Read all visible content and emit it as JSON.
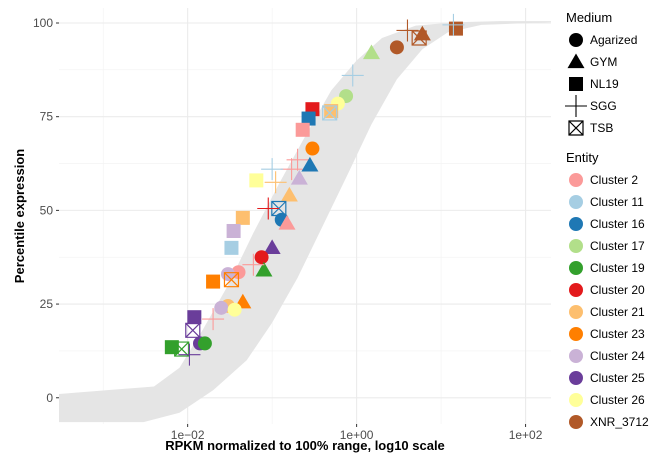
{
  "chart_data": {
    "type": "scatter",
    "title": "",
    "xlabel": "RPKM normalized to 100% range, log10 scale",
    "ylabel": "Percentile expression",
    "x_scale": "log10",
    "xlim": [
      0.0003,
      200
    ],
    "ylim": [
      -7,
      104
    ],
    "x_ticks": [
      0.01,
      1,
      100
    ],
    "x_tick_labels": [
      "1e−02",
      "1e+00",
      "1e+02"
    ],
    "y_ticks": [
      0,
      25,
      50,
      75,
      100
    ],
    "y_tick_labels": [
      "0",
      "25",
      "50",
      "75",
      "100"
    ],
    "grid": true,
    "legend_position": "right",
    "band": {
      "color": "#e5e5e5",
      "upper": [
        [
          0.0003,
          1.0
        ],
        [
          0.004,
          3
        ],
        [
          0.008,
          8
        ],
        [
          0.015,
          18
        ],
        [
          0.03,
          30
        ],
        [
          0.06,
          44
        ],
        [
          0.12,
          57
        ],
        [
          0.25,
          70
        ],
        [
          0.5,
          82
        ],
        [
          1,
          90
        ],
        [
          2,
          96
        ],
        [
          5,
          99.3
        ],
        [
          15,
          100.2
        ],
        [
          50,
          100.5
        ],
        [
          200,
          100.5
        ]
      ],
      "lower": [
        [
          0.0003,
          -6.5
        ],
        [
          0.003,
          -6.5
        ],
        [
          0.008,
          -4
        ],
        [
          0.02,
          2
        ],
        [
          0.05,
          10
        ],
        [
          0.1,
          20
        ],
        [
          0.2,
          32
        ],
        [
          0.4,
          46
        ],
        [
          0.8,
          60
        ],
        [
          1.5,
          73
        ],
        [
          3,
          85
        ],
        [
          6,
          93
        ],
        [
          12,
          97.5
        ],
        [
          30,
          99.5
        ],
        [
          200,
          100.2
        ]
      ]
    },
    "legends": {
      "medium": {
        "title": "Medium",
        "items": [
          {
            "label": "Agarized",
            "shape": "circle"
          },
          {
            "label": "GYM",
            "shape": "triangle"
          },
          {
            "label": "NL19",
            "shape": "square"
          },
          {
            "label": "SGG",
            "shape": "plus"
          },
          {
            "label": "TSB",
            "shape": "boxx"
          }
        ]
      },
      "entity": {
        "title": "Entity",
        "items": [
          {
            "label": "Cluster 2",
            "color": "#fb9a99"
          },
          {
            "label": "Cluster 11",
            "color": "#a6cee3"
          },
          {
            "label": "Cluster 16",
            "color": "#1f78b4"
          },
          {
            "label": "Cluster 17",
            "color": "#b2df8a"
          },
          {
            "label": "Cluster 19",
            "color": "#33a02c"
          },
          {
            "label": "Cluster 20",
            "color": "#e31a1c"
          },
          {
            "label": "Cluster 21",
            "color": "#fdbf6f"
          },
          {
            "label": "Cluster 23",
            "color": "#ff7f00"
          },
          {
            "label": "Cluster 24",
            "color": "#cab2d6"
          },
          {
            "label": "Cluster 25",
            "color": "#6a3d9a"
          },
          {
            "label": "Cluster 26",
            "color": "#ffff99"
          },
          {
            "label": "XNR_3712",
            "color": "#b15928"
          }
        ]
      }
    },
    "points": [
      {
        "x": 15,
        "y": 98.5,
        "entity": "XNR_3712",
        "medium": "square"
      },
      {
        "x": 6,
        "y": 97,
        "entity": "XNR_3712",
        "medium": "triangle"
      },
      {
        "x": 5.5,
        "y": 96,
        "entity": "XNR_3712",
        "medium": "boxx"
      },
      {
        "x": 4,
        "y": 98,
        "entity": "XNR_3712",
        "medium": "plus"
      },
      {
        "x": 3,
        "y": 93.5,
        "entity": "XNR_3712",
        "medium": "circle"
      },
      {
        "x": 14,
        "y": 99.5,
        "entity": "Cluster 11",
        "medium": "plus"
      },
      {
        "x": 1.5,
        "y": 92,
        "entity": "Cluster 17",
        "medium": "triangle"
      },
      {
        "x": 0.9,
        "y": 86,
        "entity": "Cluster 11",
        "medium": "plus"
      },
      {
        "x": 0.75,
        "y": 80.5,
        "entity": "Cluster 17",
        "medium": "circle"
      },
      {
        "x": 0.6,
        "y": 78.5,
        "entity": "Cluster 26",
        "medium": "circle"
      },
      {
        "x": 0.5,
        "y": 76.5,
        "entity": "Cluster 21",
        "medium": "square"
      },
      {
        "x": 0.48,
        "y": 76,
        "entity": "Cluster 11",
        "medium": "boxx"
      },
      {
        "x": 0.3,
        "y": 77,
        "entity": "Cluster 20",
        "medium": "square"
      },
      {
        "x": 0.27,
        "y": 74.5,
        "entity": "Cluster 16",
        "medium": "square"
      },
      {
        "x": 0.23,
        "y": 71.5,
        "entity": "Cluster 2",
        "medium": "square"
      },
      {
        "x": 0.3,
        "y": 66.5,
        "entity": "Cluster 23",
        "medium": "circle"
      },
      {
        "x": 0.2,
        "y": 63.5,
        "entity": "Cluster 2",
        "medium": "plus"
      },
      {
        "x": 0.17,
        "y": 61,
        "entity": "Cluster 2",
        "medium": "plus"
      },
      {
        "x": 0.28,
        "y": 62,
        "entity": "Cluster 16",
        "medium": "triangle"
      },
      {
        "x": 0.21,
        "y": 58.5,
        "entity": "Cluster 24",
        "medium": "triangle"
      },
      {
        "x": 0.1,
        "y": 61,
        "entity": "Cluster 11",
        "medium": "plus"
      },
      {
        "x": 0.11,
        "y": 57.5,
        "entity": "Cluster 21",
        "medium": "plus"
      },
      {
        "x": 0.065,
        "y": 58,
        "entity": "Cluster 26",
        "medium": "square"
      },
      {
        "x": 0.16,
        "y": 54,
        "entity": "Cluster 21",
        "medium": "triangle"
      },
      {
        "x": 0.12,
        "y": 50.5,
        "entity": "Cluster 16",
        "medium": "boxx"
      },
      {
        "x": 0.09,
        "y": 50.5,
        "entity": "Cluster 20",
        "medium": "plus"
      },
      {
        "x": 0.045,
        "y": 48,
        "entity": "Cluster 21",
        "medium": "square"
      },
      {
        "x": 0.13,
        "y": 47.5,
        "entity": "Cluster 16",
        "medium": "circle"
      },
      {
        "x": 0.15,
        "y": 46.5,
        "entity": "Cluster 2",
        "medium": "triangle"
      },
      {
        "x": 0.035,
        "y": 44.5,
        "entity": "Cluster 24",
        "medium": "square"
      },
      {
        "x": 0.033,
        "y": 40,
        "entity": "Cluster 11",
        "medium": "square"
      },
      {
        "x": 0.1,
        "y": 40,
        "entity": "Cluster 25",
        "medium": "triangle"
      },
      {
        "x": 0.075,
        "y": 37.5,
        "entity": "Cluster 20",
        "medium": "circle"
      },
      {
        "x": 0.08,
        "y": 34,
        "entity": "Cluster 19",
        "medium": "triangle"
      },
      {
        "x": 0.06,
        "y": 35.5,
        "entity": "Cluster 2",
        "medium": "plus"
      },
      {
        "x": 0.04,
        "y": 33.5,
        "entity": "Cluster 2",
        "medium": "circle"
      },
      {
        "x": 0.03,
        "y": 33,
        "entity": "Cluster 24",
        "medium": "circle"
      },
      {
        "x": 0.033,
        "y": 31.5,
        "entity": "Cluster 23",
        "medium": "boxx"
      },
      {
        "x": 0.02,
        "y": 31,
        "entity": "Cluster 23",
        "medium": "square"
      },
      {
        "x": 0.045,
        "y": 25.5,
        "entity": "Cluster 23",
        "medium": "triangle"
      },
      {
        "x": 0.03,
        "y": 24.5,
        "entity": "Cluster 21",
        "medium": "circle"
      },
      {
        "x": 0.025,
        "y": 24,
        "entity": "Cluster 24",
        "medium": "circle"
      },
      {
        "x": 0.036,
        "y": 23.5,
        "entity": "Cluster 26",
        "medium": "circle"
      },
      {
        "x": 0.02,
        "y": 21,
        "entity": "Cluster 2",
        "medium": "plus"
      },
      {
        "x": 0.012,
        "y": 21.5,
        "entity": "Cluster 25",
        "medium": "square"
      },
      {
        "x": 0.0115,
        "y": 18,
        "entity": "Cluster 25",
        "medium": "boxx"
      },
      {
        "x": 0.014,
        "y": 14.5,
        "entity": "Cluster 25",
        "medium": "circle"
      },
      {
        "x": 0.016,
        "y": 14.5,
        "entity": "Cluster 19",
        "medium": "circle"
      },
      {
        "x": 0.0065,
        "y": 13.5,
        "entity": "Cluster 19",
        "medium": "square"
      },
      {
        "x": 0.0085,
        "y": 13,
        "entity": "Cluster 19",
        "medium": "boxx"
      },
      {
        "x": 0.0105,
        "y": 11.5,
        "entity": "Cluster 25",
        "medium": "plus"
      }
    ]
  }
}
